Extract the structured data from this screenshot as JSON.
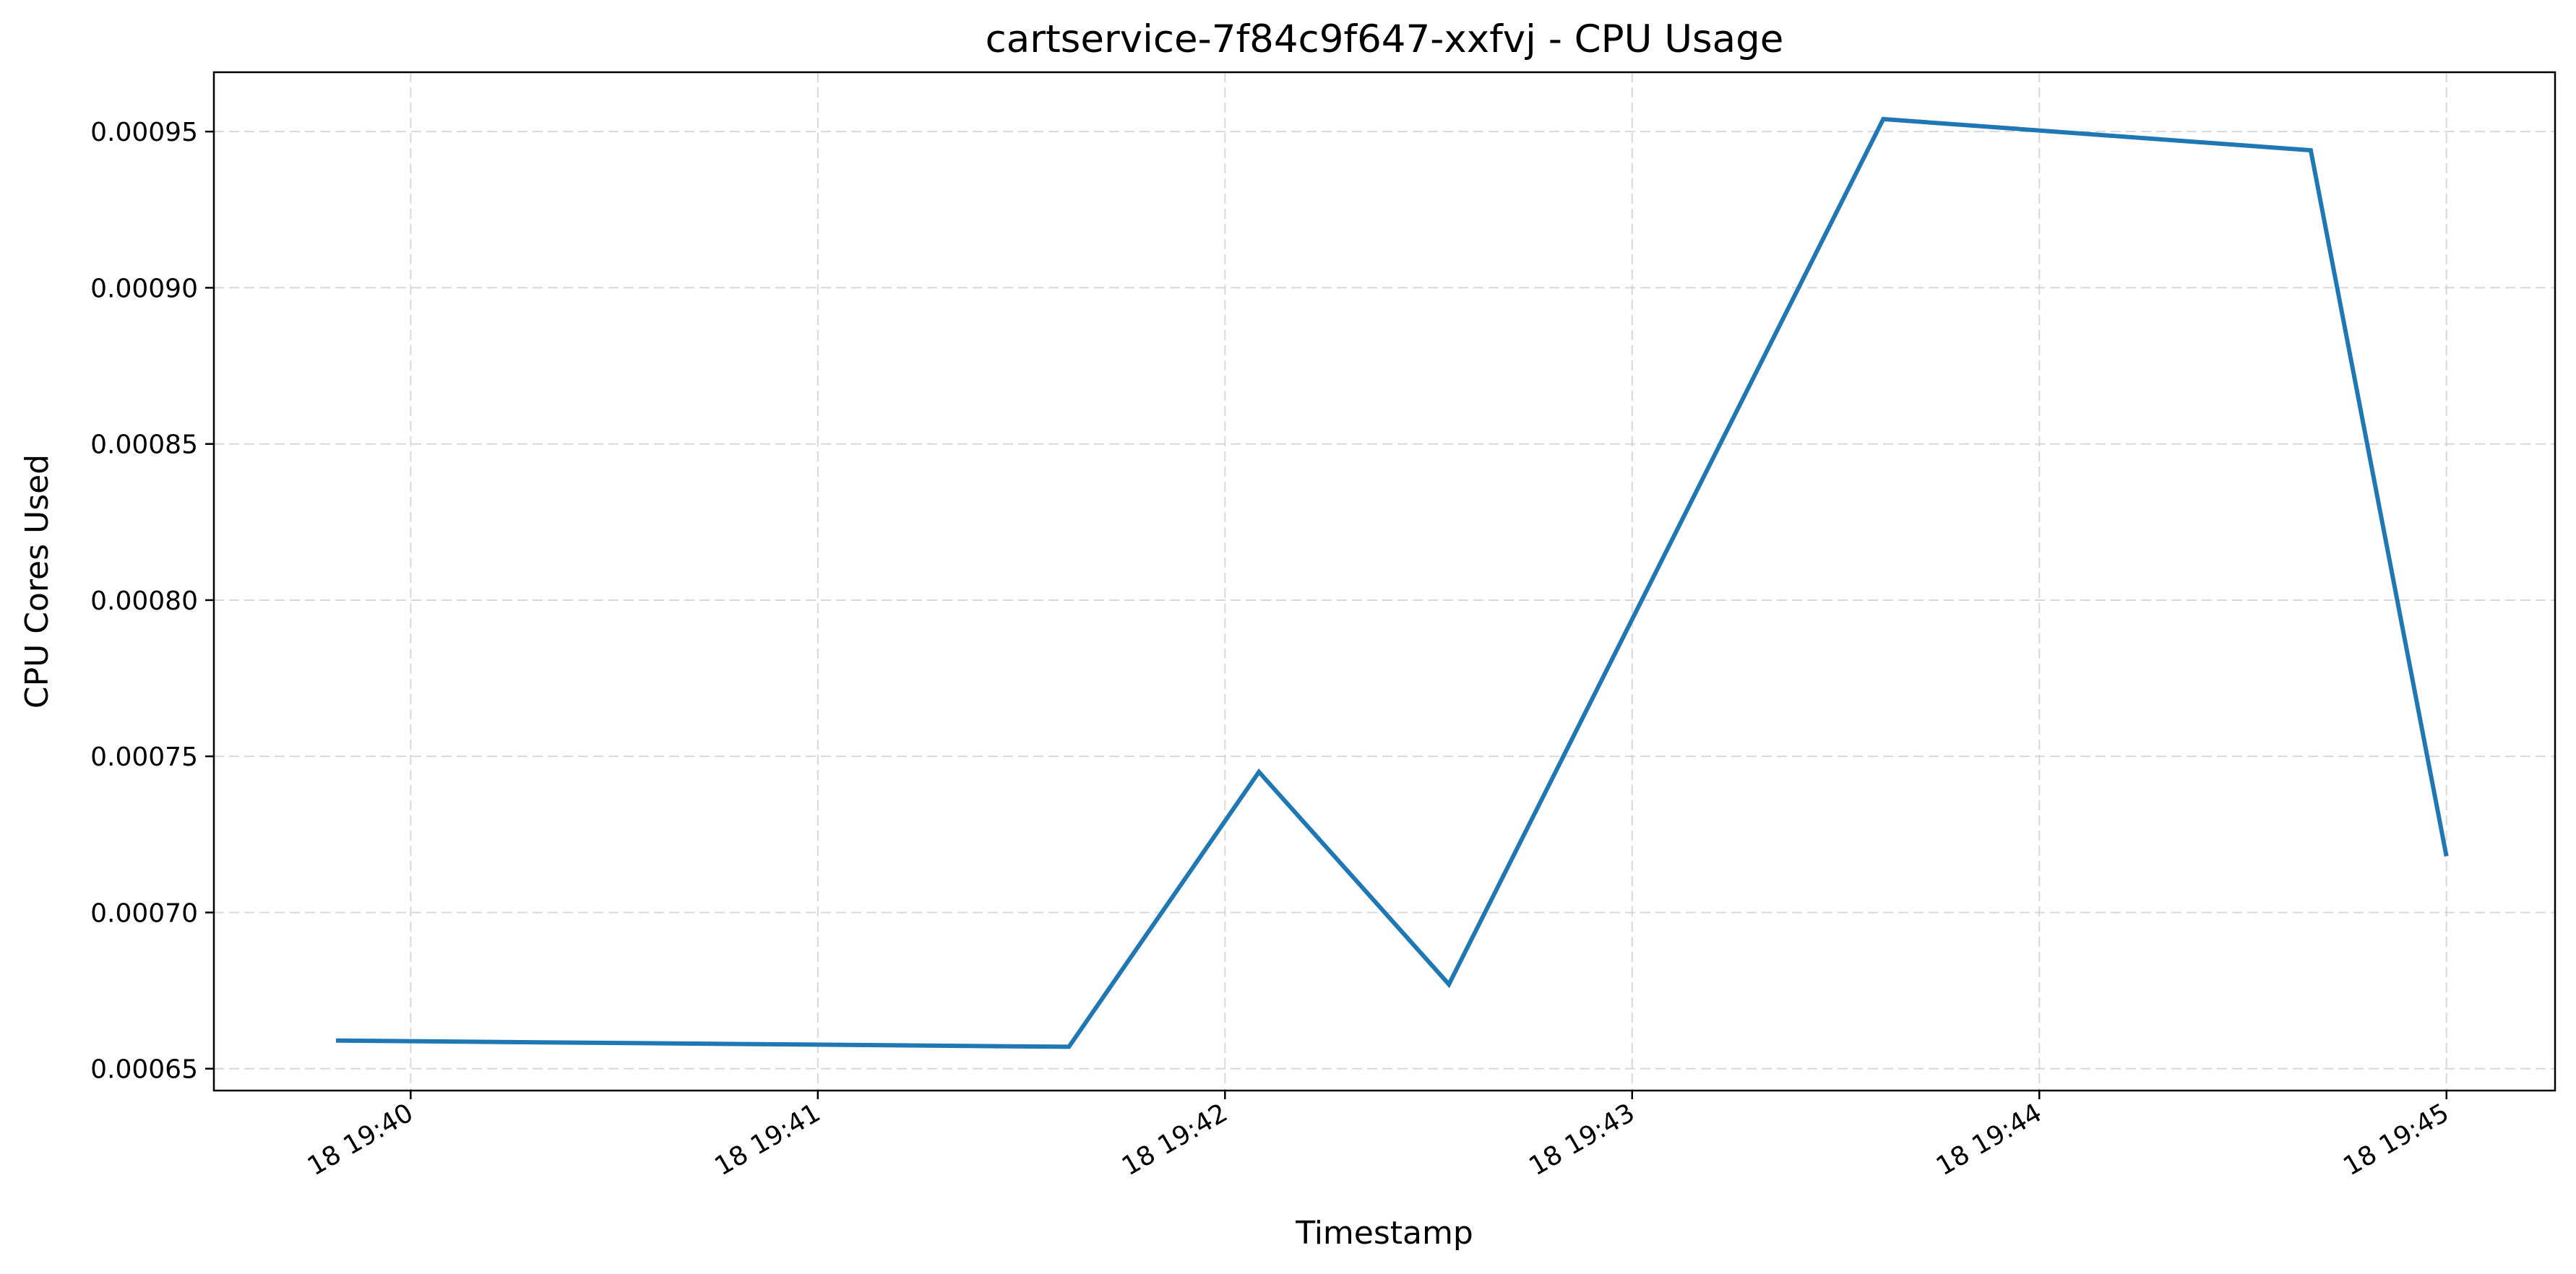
{
  "chart_data": {
    "type": "line",
    "title": "cartservice-7f84c9f647-xxfvj - CPU Usage",
    "xlabel": "Timestamp",
    "ylabel": "CPU Cores Used",
    "grid": true,
    "x_ticks": [
      "18 19:40",
      "18 19:41",
      "18 19:42",
      "18 19:43",
      "18 19:44",
      "18 19:45"
    ],
    "y_ticks": [
      "0.00065",
      "0.00070",
      "0.00075",
      "0.00080",
      "0.00085",
      "0.00090",
      "0.00095"
    ],
    "ylim": [
      0.000643,
      0.000969
    ],
    "xlim": [
      "19:39:31",
      "19:45:16"
    ],
    "series": [
      {
        "color": "#1f77b4",
        "x": [
          "19:39:49",
          "19:41:37",
          "19:42:05",
          "19:42:33",
          "19:43:37",
          "19:44:40",
          "19:45:00"
        ],
        "y": [
          0.000659,
          0.000657,
          0.000745,
          0.000677,
          0.000954,
          0.000944,
          0.000718
        ]
      }
    ]
  }
}
